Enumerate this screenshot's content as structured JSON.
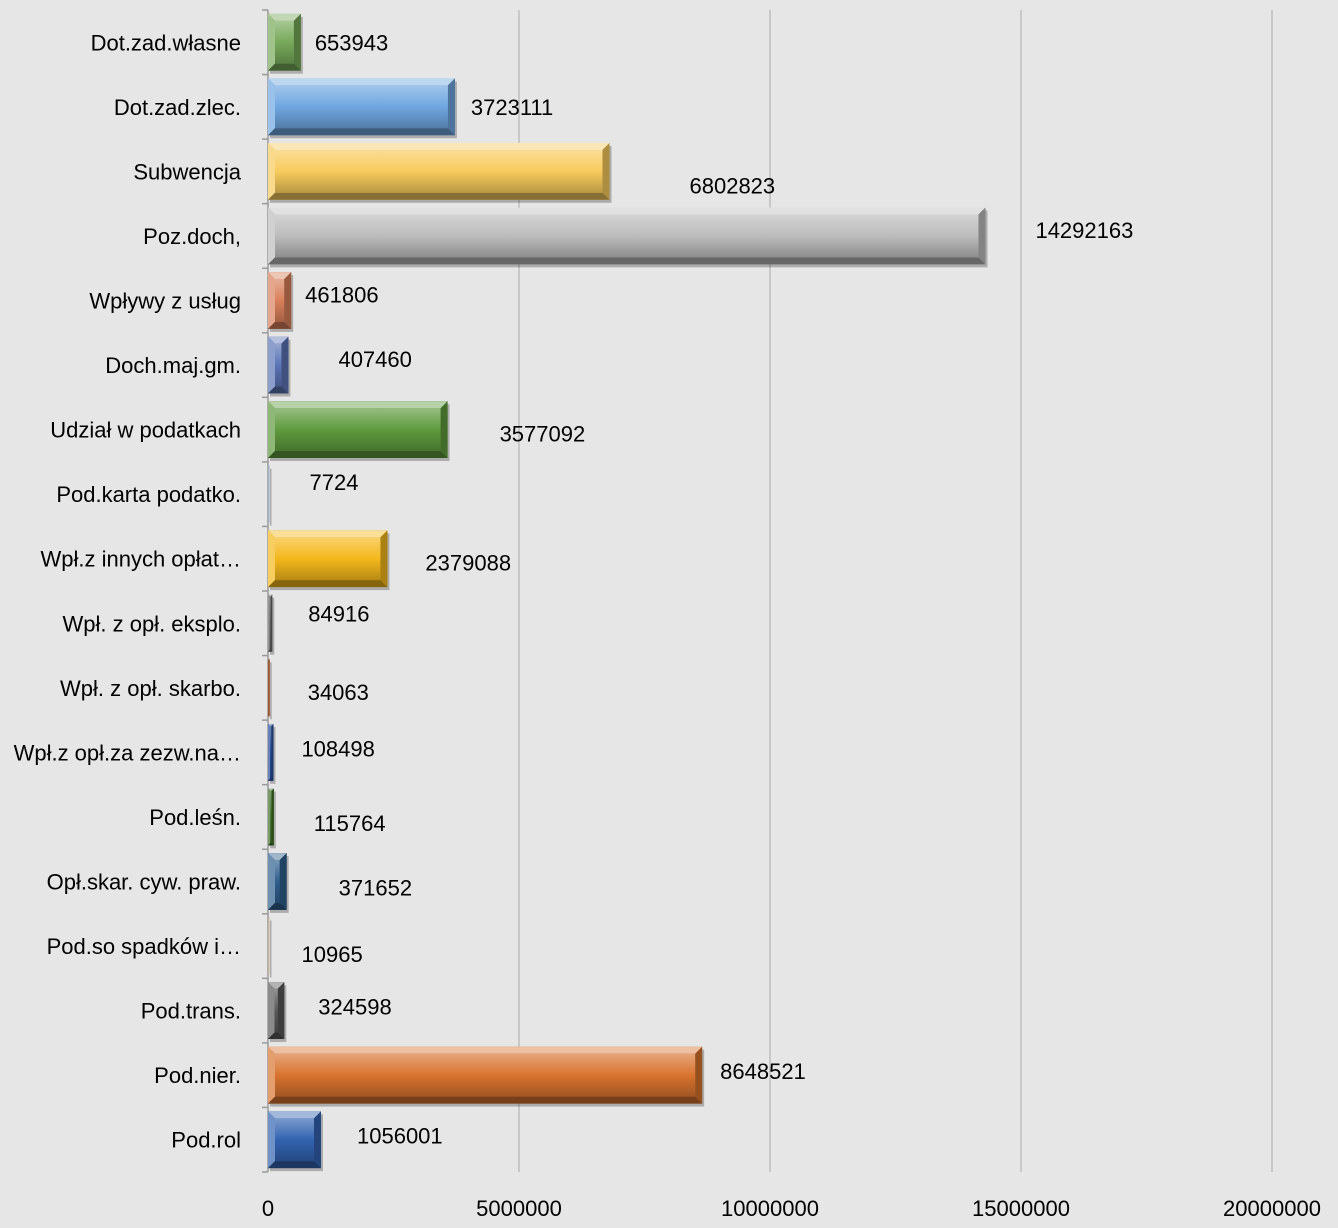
{
  "chart_data": {
    "type": "bar",
    "orientation": "horizontal",
    "title": "",
    "xlabel": "",
    "ylabel": "",
    "xlim": [
      0,
      20000000
    ],
    "x_ticks": [
      "0",
      "5000000",
      "10000000",
      "15000000",
      "20000000"
    ],
    "grid": "vertical",
    "legend": "none",
    "categories": [
      "Dot.zad.własne",
      "Dot.zad.zlec.",
      "Subwencja",
      "Poz.doch,",
      "Wpływy z usług",
      "Doch.maj.gm.",
      "Udział w podatkach",
      "Pod.karta podatko.",
      "Wpł.z innych opłat…",
      "Wpł. z opł. eksplo.",
      "Wpł. z opł. skarbo.",
      "Wpł.z opł.za zezw.na…",
      "Pod.leśn.",
      "Opł.skar. cyw. praw.",
      "Pod.so spadków i…",
      "Pod.trans.",
      "Pod.nier.",
      "Pod.rol"
    ],
    "values": [
      653943,
      3723111,
      6802823,
      14292163,
      461806,
      407460,
      3577092,
      7724,
      2379088,
      84916,
      34063,
      108498,
      115764,
      371652,
      10965,
      324598,
      8648521,
      1056001
    ],
    "data_labels": [
      "653943",
      "3723111",
      "6802823",
      "14292163",
      "461806",
      "407460",
      "3577092",
      "7724",
      "2379088",
      "84916",
      "34063",
      "108498",
      "115764",
      "371652",
      "10965",
      "324598",
      "8648521",
      "1056001"
    ],
    "colors": [
      "#77a95a",
      "#6fa6e0",
      "#f7ca5c",
      "#bcbcbc",
      "#d9805a",
      "#5b74b5",
      "#5f9a3e",
      "#a0b0c8",
      "#f4b81c",
      "#666666",
      "#9a5430",
      "#264d99",
      "#3f7027",
      "#2f5f8e",
      "#c4b79a",
      "#595959",
      "#d8732f",
      "#3363b0"
    ]
  }
}
